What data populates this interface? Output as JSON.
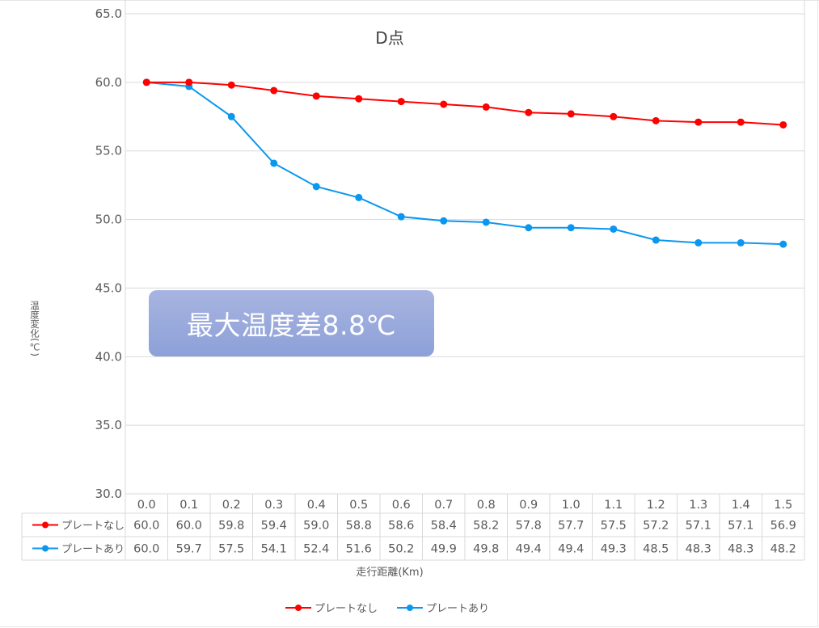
{
  "chart_data": {
    "type": "line",
    "title": "D点",
    "xlabel": "走行距離(Km)",
    "ylabel": "温度変化(℃)",
    "ylim": [
      30.0,
      65.0
    ],
    "yticks": [
      "30.0",
      "35.0",
      "40.0",
      "45.0",
      "50.0",
      "55.0",
      "60.0",
      "65.0"
    ],
    "grid": true,
    "legend_position": "bottom",
    "categories": [
      "0.0",
      "0.1",
      "0.2",
      "0.3",
      "0.4",
      "0.5",
      "0.6",
      "0.7",
      "0.8",
      "0.9",
      "1.0",
      "1.1",
      "1.2",
      "1.3",
      "1.4",
      "1.5"
    ],
    "series": [
      {
        "name": "プレートなし",
        "color": "#ff0000",
        "values": [
          60.0,
          60.0,
          59.8,
          59.4,
          59.0,
          58.8,
          58.6,
          58.4,
          58.2,
          57.8,
          57.7,
          57.5,
          57.2,
          57.1,
          57.1,
          56.9
        ]
      },
      {
        "name": "プレートあり",
        "color": "#0b96f0",
        "values": [
          60.0,
          59.7,
          57.5,
          54.1,
          52.4,
          51.6,
          50.2,
          49.9,
          49.8,
          49.4,
          49.4,
          49.3,
          48.5,
          48.3,
          48.3,
          48.2
        ]
      }
    ],
    "annotations": [
      {
        "text": "最大温度差8.8℃"
      }
    ],
    "data_table": true
  },
  "annotation": {
    "text": "最大温度差8.8℃"
  },
  "axis": {
    "ylabel": "温度変化(℃)",
    "xlabel": "走行距離(Km)"
  }
}
